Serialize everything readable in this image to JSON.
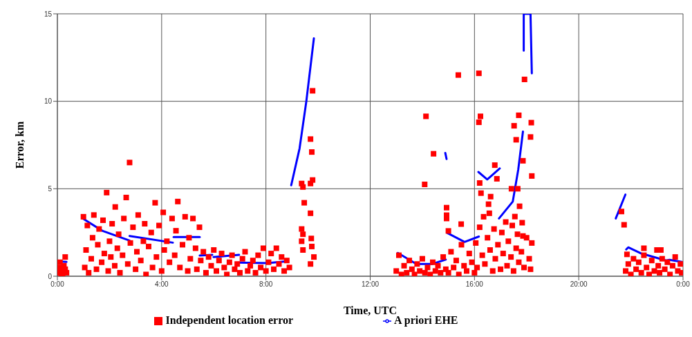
{
  "chart_data": {
    "type": "scatter",
    "xlabel": "Time, UTC",
    "ylabel": "Error, km",
    "xlim": [
      0,
      24
    ],
    "xticks": [
      {
        "value": 0,
        "label": "0:00"
      },
      {
        "value": 4,
        "label": "4:00"
      },
      {
        "value": 8,
        "label": "8:00"
      },
      {
        "value": 12,
        "label": "12:00"
      },
      {
        "value": 16,
        "label": "16:00"
      },
      {
        "value": 20,
        "label": "20:00"
      },
      {
        "value": 24,
        "label": "0:00"
      }
    ],
    "ylim": [
      0,
      15
    ],
    "yticks": [
      0,
      5,
      10,
      15
    ],
    "grid": true,
    "legend": "bottom",
    "series": [
      {
        "name": "Independent location error",
        "marker": "square",
        "color": "#ff0000",
        "x": [
          0.05,
          0.1,
          0.15,
          0.2,
          0.25,
          0.3,
          0.35,
          0.1,
          0.2,
          0.3,
          1.0,
          1.05,
          1.1,
          1.15,
          1.2,
          1.3,
          1.35,
          1.4,
          1.5,
          1.55,
          1.6,
          1.7,
          1.75,
          1.8,
          1.89,
          1.95,
          2.0,
          2.05,
          2.1,
          2.2,
          2.22,
          2.3,
          2.35,
          2.4,
          2.5,
          2.55,
          2.64,
          2.7,
          2.77,
          2.8,
          2.9,
          3.0,
          3.05,
          3.1,
          3.2,
          3.3,
          3.35,
          3.4,
          3.5,
          3.6,
          3.65,
          3.75,
          3.8,
          3.9,
          4.0,
          4.06,
          4.1,
          4.2,
          4.3,
          4.4,
          4.5,
          4.55,
          4.62,
          4.7,
          4.8,
          4.9,
          5.0,
          5.05,
          5.1,
          5.2,
          5.3,
          5.35,
          5.45,
          5.5,
          5.6,
          5.7,
          5.8,
          5.9,
          6.0,
          6.1,
          6.2,
          6.3,
          6.4,
          6.5,
          6.6,
          6.7,
          6.8,
          6.9,
          7.0,
          7.1,
          7.2,
          7.3,
          7.4,
          7.5,
          7.6,
          7.7,
          7.8,
          7.9,
          8.0,
          8.1,
          8.2,
          8.3,
          8.4,
          8.5,
          8.6,
          8.7,
          8.8,
          8.9,
          9.79,
          9.71,
          9.76,
          9.79,
          9.37,
          9.42,
          9.71,
          9.47,
          9.71,
          9.37,
          9.42,
          9.37,
          9.74,
          9.76,
          9.84,
          9.71,
          9.42,
          15.38,
          16.17,
          17.92,
          14.14,
          16.23,
          16.17,
          17.7,
          17.52,
          18.18,
          17.6,
          18.15,
          14.43,
          17.86,
          18.2,
          14.09,
          16.78,
          16.86,
          16.2,
          17.42,
          17.66,
          16.25,
          16.62,
          16.54,
          16.57,
          14.93,
          14.93,
          14.93,
          15.49,
          15.0,
          17.73,
          17.83,
          17.86,
          18.2,
          17.55,
          13.0,
          13.1,
          13.2,
          13.3,
          13.4,
          13.5,
          13.6,
          13.7,
          13.8,
          13.9,
          14.0,
          14.1,
          14.2,
          14.3,
          14.4,
          14.5,
          14.6,
          14.7,
          14.8,
          14.9,
          15.0,
          15.1,
          15.2,
          15.3,
          15.4,
          15.5,
          15.6,
          15.7,
          15.8,
          15.9,
          16.0,
          16.05,
          16.1,
          16.2,
          16.3,
          16.35,
          16.4,
          16.5,
          16.6,
          16.7,
          16.75,
          16.8,
          16.9,
          17.0,
          17.05,
          17.1,
          17.2,
          17.25,
          17.3,
          17.4,
          17.45,
          17.5,
          17.6,
          17.65,
          17.7,
          17.8,
          17.9,
          18.0,
          18.1,
          18.15,
          21.64,
          21.74,
          21.85,
          21.8,
          21.9,
          22.0,
          22.1,
          22.2,
          22.3,
          22.4,
          22.5,
          22.6,
          22.7,
          22.8,
          22.9,
          23.0,
          23.05,
          23.1,
          23.2,
          23.3,
          23.4,
          23.5,
          23.6,
          23.7,
          23.8,
          23.9,
          23.95,
          22.5,
          23.15
        ],
        "values": [
          0.2,
          0.5,
          0.1,
          0.3,
          0.6,
          1.1,
          0.2,
          0.8,
          0.05,
          0.4,
          3.4,
          0.5,
          1.5,
          2.9,
          0.2,
          1.0,
          2.2,
          3.5,
          0.4,
          1.8,
          2.7,
          0.8,
          3.2,
          1.3,
          4.78,
          0.3,
          2.0,
          1.1,
          3.0,
          0.6,
          3.96,
          1.6,
          2.4,
          0.2,
          1.2,
          3.3,
          4.5,
          0.7,
          6.5,
          1.9,
          2.8,
          0.4,
          1.4,
          3.5,
          0.9,
          2.0,
          3.0,
          0.1,
          1.7,
          2.5,
          0.5,
          4.2,
          1.1,
          2.9,
          0.3,
          3.65,
          1.5,
          2.0,
          0.8,
          3.3,
          1.2,
          2.6,
          4.27,
          0.5,
          1.8,
          3.4,
          0.3,
          2.2,
          1.0,
          3.3,
          1.6,
          0.4,
          2.8,
          0.9,
          1.4,
          0.2,
          1.1,
          0.6,
          1.5,
          0.3,
          0.9,
          1.3,
          0.5,
          0.1,
          0.8,
          1.2,
          0.4,
          0.7,
          0.2,
          1.0,
          1.4,
          0.3,
          0.6,
          0.9,
          0.2,
          1.2,
          0.5,
          1.6,
          0.3,
          0.8,
          1.3,
          0.4,
          1.6,
          0.7,
          1.1,
          0.3,
          0.9,
          0.5,
          10.6,
          7.84,
          7.1,
          5.5,
          5.3,
          5.1,
          5.3,
          4.2,
          3.6,
          2.7,
          2.4,
          2.0,
          2.16,
          1.7,
          1.1,
          0.7,
          1.5,
          11.5,
          11.6,
          11.25,
          9.14,
          9.14,
          8.8,
          9.2,
          8.6,
          8.78,
          7.8,
          7.96,
          7.0,
          6.6,
          5.73,
          5.25,
          6.35,
          5.57,
          5.33,
          5.0,
          5.0,
          4.75,
          4.55,
          4.12,
          3.6,
          3.92,
          3.49,
          3.3,
          2.98,
          2.59,
          4.0,
          3.06,
          2.3,
          1.9,
          3.41,
          0.3,
          1.2,
          0.1,
          0.6,
          0.2,
          0.9,
          0.4,
          0.1,
          0.7,
          0.3,
          1.0,
          0.2,
          0.5,
          0.1,
          0.8,
          0.3,
          0.6,
          0.2,
          1.1,
          0.4,
          0.2,
          1.4,
          0.5,
          0.9,
          0.1,
          1.8,
          0.6,
          0.3,
          1.3,
          0.8,
          0.2,
          1.9,
          0.5,
          2.8,
          1.2,
          3.4,
          0.7,
          2.2,
          1.5,
          0.3,
          2.7,
          1.0,
          1.8,
          0.4,
          2.5,
          1.3,
          3.1,
          0.6,
          2.0,
          1.1,
          2.9,
          0.3,
          1.6,
          2.4,
          0.8,
          1.4,
          0.5,
          2.2,
          1.0,
          0.4,
          3.7,
          2.94,
          1.25,
          0.3,
          0.7,
          0.1,
          1.0,
          0.4,
          0.8,
          0.2,
          1.2,
          0.5,
          0.1,
          0.9,
          0.3,
          1.5,
          0.6,
          0.2,
          1.0,
          0.4,
          0.8,
          0.1,
          0.6,
          1.1,
          0.3,
          0.7,
          0.2,
          1.6,
          1.5
        ]
      },
      {
        "name": "A priori EHE",
        "type": "line",
        "marker": "none",
        "line_style": "solid",
        "color": "#0000ff",
        "x": [
          0,
          0.35
        ],
        "values": [
          0.85,
          0.82
        ]
      },
      {
        "type": "line",
        "marker": "none",
        "line_style": "solid",
        "color": "#0000ff",
        "x": [
          0.98,
          1.72,
          2.77
        ],
        "values": [
          3.3,
          2.6,
          2.04
        ]
      },
      {
        "type": "line",
        "marker": "none",
        "line_style": "solid",
        "color": "#0000ff",
        "x": [
          2.77,
          4.43
        ],
        "values": [
          2.3,
          1.92
        ]
      },
      {
        "type": "line",
        "marker": "none",
        "line_style": "solid",
        "color": "#0000ff",
        "x": [
          4.46,
          5.46
        ],
        "values": [
          2.24,
          2.24
        ]
      },
      {
        "type": "line",
        "marker": "none",
        "line_style": "solid",
        "color": "#0000ff",
        "x": [
          5.46,
          5.94
        ],
        "values": [
          1.18,
          1.22
        ]
      },
      {
        "type": "line",
        "marker": "none",
        "line_style": "solid",
        "color": "#0000ff",
        "x": [
          5.99,
          6.97
        ],
        "values": [
          1.1,
          1.22
        ]
      },
      {
        "type": "line",
        "marker": "none",
        "line_style": "solid",
        "color": "#0000ff",
        "x": [
          6.94,
          8.05,
          8.84
        ],
        "values": [
          0.78,
          0.75,
          0.86
        ]
      },
      {
        "type": "line",
        "marker": "none",
        "line_style": "solid",
        "color": "#0000ff",
        "x": [
          8.97,
          9.29,
          9.55,
          9.84
        ],
        "values": [
          5.2,
          7.3,
          10.0,
          13.6
        ]
      },
      {
        "type": "line",
        "marker": "none",
        "line_style": "solid",
        "color": "#0000ff",
        "x": [
          13.06,
          13.77,
          14.38,
          14.9
        ],
        "values": [
          1.33,
          0.7,
          0.7,
          0.95
        ]
      },
      {
        "type": "line",
        "marker": "none",
        "line_style": "solid",
        "color": "#0000ff",
        "x": [
          14.88,
          14.93
        ],
        "values": [
          7.05,
          6.7
        ]
      },
      {
        "type": "line",
        "marker": "none",
        "line_style": "solid",
        "color": "#0000ff",
        "x": [
          14.96,
          15.62,
          16.17
        ],
        "values": [
          2.47,
          1.96,
          2.27
        ]
      },
      {
        "type": "line",
        "marker": "none",
        "line_style": "solid",
        "color": "#0000ff",
        "x": [
          16.15,
          16.49,
          16.97
        ],
        "values": [
          5.96,
          5.53,
          6.16
        ]
      },
      {
        "type": "line",
        "marker": "none",
        "line_style": "solid",
        "color": "#0000ff",
        "x": [
          16.94,
          17.47,
          17.68,
          17.86
        ],
        "values": [
          3.3,
          4.27,
          6.1,
          8.27
        ]
      },
      {
        "type": "line",
        "marker": "none",
        "line_style": "solid",
        "color": "#0000ff",
        "x": [
          17.89,
          17.89,
          18.15,
          18.2
        ],
        "values": [
          12.9,
          15,
          15,
          11.6
        ]
      },
      {
        "type": "line",
        "marker": "none",
        "line_style": "solid",
        "color": "#0000ff",
        "x": [
          21.42,
          21.79
        ],
        "values": [
          3.3,
          4.67
        ]
      },
      {
        "type": "line",
        "marker": "none",
        "line_style": "solid",
        "color": "#0000ff",
        "x": [
          21.82,
          21.9,
          22.4,
          23.35,
          23.48,
          23.96
        ],
        "values": [
          1.53,
          1.65,
          1.3,
          0.9,
          0.94,
          0.82
        ]
      }
    ]
  }
}
